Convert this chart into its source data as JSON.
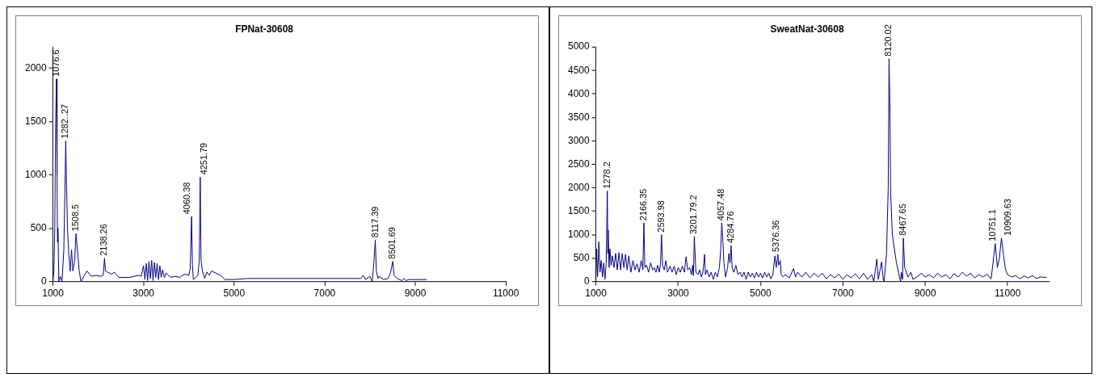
{
  "chart_data": [
    {
      "type": "line",
      "title": "FPNat-30608",
      "xlim": [
        1000,
        11000
      ],
      "xticks": [
        1000,
        3000,
        5000,
        7000,
        9000,
        11000
      ],
      "ylim": [
        0,
        2200
      ],
      "yticks": [
        0,
        500,
        1000,
        1500,
        2000
      ],
      "grid": false,
      "legend": false,
      "marker": "none",
      "series": [
        {
          "color": "#000080",
          "x": [
            1000,
            1020,
            1040,
            1060,
            1076.6,
            1090,
            1100,
            1110,
            1130,
            1160,
            1200,
            1240,
            1270,
            1282.27,
            1300,
            1320,
            1350,
            1380,
            1410,
            1440,
            1480,
            1508.5,
            1540,
            1580,
            1620,
            1680,
            1750,
            1850,
            1950,
            2050,
            2110,
            2138.26,
            2160,
            2200,
            2300,
            2350,
            2450,
            2700,
            2900,
            2950,
            3000,
            3030,
            3060,
            3090,
            3120,
            3150,
            3180,
            3210,
            3240,
            3270,
            3300,
            3330,
            3360,
            3390,
            3420,
            3460,
            3500,
            3600,
            3700,
            3800,
            3900,
            4000,
            4030,
            4060.38,
            4080,
            4100,
            4200,
            4230,
            4251.79,
            4270,
            4300,
            4350,
            4400,
            4450,
            4500,
            4600,
            4700,
            4800,
            5000,
            5300,
            5800,
            7800,
            7850,
            7900,
            8000,
            8050,
            8090,
            8117.39,
            8140,
            8180,
            8200,
            8300,
            8400,
            8450,
            8501.69,
            8530,
            8600,
            8700,
            8750,
            8800,
            8850,
            9250
          ],
          "values": [
            0,
            100,
            500,
            1500,
            1900,
            1000,
            370,
            500,
            0,
            50,
            0,
            300,
            1000,
            1320,
            900,
            500,
            250,
            100,
            300,
            100,
            200,
            450,
            300,
            100,
            0,
            50,
            100,
            50,
            60,
            50,
            60,
            220,
            100,
            90,
            70,
            90,
            40,
            40,
            60,
            50,
            150,
            20,
            170,
            10,
            190,
            30,
            200,
            10,
            180,
            40,
            170,
            20,
            150,
            40,
            110,
            40,
            80,
            40,
            50,
            40,
            70,
            60,
            120,
            610,
            150,
            20,
            60,
            200,
            980,
            200,
            100,
            30,
            90,
            60,
            100,
            80,
            60,
            20,
            20,
            30,
            30,
            30,
            60,
            20,
            50,
            0,
            200,
            390,
            100,
            30,
            50,
            20,
            30,
            80,
            190,
            60,
            30,
            10,
            30,
            10,
            20,
            20
          ]
        }
      ],
      "annotations": [
        {
          "text": "1076.6",
          "x": 1076.6,
          "y": 1900
        },
        {
          "text": "1282..27",
          "x": 1282.27,
          "y": 1320
        },
        {
          "text": "1508.5",
          "x": 1508.5,
          "y": 450
        },
        {
          "text": "2138.26",
          "x": 2138.26,
          "y": 220
        },
        {
          "text": "4060.38",
          "x": 4060.38,
          "y": 610
        },
        {
          "text": "4251.79",
          "x": 4251.79,
          "y": 980
        },
        {
          "text": "8117.39",
          "x": 8117.39,
          "y": 390
        },
        {
          "text": "8501.69",
          "x": 8501.69,
          "y": 190
        }
      ]
    },
    {
      "type": "line",
      "title": "SweatNat-30608",
      "xlim": [
        1000,
        12000
      ],
      "xticks": [
        1000,
        3000,
        5000,
        7000,
        9000,
        11000
      ],
      "ylim": [
        0,
        5000
      ],
      "yticks": [
        0,
        500,
        1000,
        1500,
        2000,
        2500,
        3000,
        3500,
        4000,
        4500,
        5000
      ],
      "grid": false,
      "legend": false,
      "marker": "none",
      "series": [
        {
          "color": "#000080",
          "x": [
            1000,
            1020,
            1040,
            1060,
            1070,
            1100,
            1130,
            1160,
            1190,
            1220,
            1250,
            1278.2,
            1290,
            1300,
            1320,
            1340,
            1370,
            1400,
            1440,
            1480,
            1520,
            1560,
            1600,
            1640,
            1680,
            1720,
            1760,
            1800,
            1850,
            1900,
            1950,
            2000,
            2050,
            2100,
            2140,
            2166.35,
            2190,
            2230,
            2280,
            2330,
            2380,
            2420,
            2460,
            2500,
            2540,
            2570,
            2593.98,
            2620,
            2660,
            2700,
            2740,
            2800,
            2850,
            2900,
            2950,
            3000,
            3050,
            3100,
            3150,
            3190,
            3230,
            3280,
            3320,
            3350,
            3370,
            3390,
            3430,
            3480,
            3520,
            3560,
            3600,
            3640,
            3660,
            3700,
            3750,
            3800,
            3850,
            3900,
            3950,
            4000,
            4030,
            4057.48,
            4080,
            4110,
            4150,
            4200,
            4230,
            4260,
            4284.76,
            4310,
            4350,
            4400,
            4450,
            4500,
            4550,
            4600,
            4650,
            4700,
            4750,
            4800,
            4850,
            4900,
            4950,
            5000,
            5050,
            5100,
            5150,
            5200,
            5250,
            5300,
            5348,
            5380,
            5420,
            5440,
            5480,
            5500,
            5550,
            5600,
            5700,
            5800,
            5850,
            5900,
            6000,
            6100,
            6200,
            6300,
            6400,
            6500,
            6600,
            6700,
            6800,
            6900,
            7000,
            7100,
            7200,
            7300,
            7400,
            7500,
            7600,
            7700,
            7750,
            7822,
            7860,
            7938,
            7980,
            8000,
            8060,
            8100,
            8120.02,
            8140,
            8160,
            8200,
            8300,
            8400,
            8420,
            8450,
            8467.65,
            8500,
            8580,
            8650,
            8700,
            8800,
            8900,
            9000,
            9100,
            9200,
            9300,
            9400,
            9500,
            9600,
            9700,
            9800,
            9900,
            10000,
            10100,
            10200,
            10300,
            10400,
            10500,
            10600,
            10700,
            10751.1,
            10800,
            10850,
            10909.63,
            10950,
            11000,
            11100,
            11200,
            11300,
            11400,
            11500,
            11600,
            11700,
            11800,
            11950
          ],
          "values": [
            0,
            700,
            100,
            500,
            850,
            200,
            450,
            100,
            400,
            50,
            380,
            1930,
            600,
            1100,
            300,
            700,
            350,
            550,
            300,
            600,
            250,
            620,
            250,
            600,
            300,
            580,
            250,
            550,
            200,
            450,
            250,
            380,
            200,
            450,
            250,
            1250,
            300,
            350,
            200,
            400,
            250,
            300,
            200,
            350,
            200,
            400,
            1000,
            350,
            250,
            450,
            200,
            330,
            200,
            330,
            150,
            300,
            200,
            330,
            200,
            530,
            250,
            300,
            150,
            350,
            130,
            960,
            200,
            150,
            250,
            100,
            200,
            580,
            150,
            250,
            100,
            200,
            50,
            200,
            100,
            300,
            650,
            1250,
            950,
            400,
            100,
            300,
            600,
            400,
            770,
            300,
            200,
            350,
            150,
            200,
            100,
            200,
            50,
            200,
            100,
            180,
            80,
            200,
            100,
            180,
            80,
            200,
            100,
            180,
            60,
            150,
            550,
            300,
            580,
            350,
            450,
            150,
            100,
            150,
            80,
            280,
            100,
            200,
            100,
            200,
            80,
            180,
            100,
            180,
            60,
            150,
            80,
            160,
            50,
            150,
            80,
            170,
            60,
            180,
            50,
            150,
            0,
            480,
            50,
            420,
            50,
            0,
            600,
            2000,
            4750,
            3800,
            1900,
            1000,
            400,
            0,
            200,
            50,
            930,
            300,
            100,
            200,
            50,
            100,
            180,
            100,
            150,
            80,
            180,
            100,
            150,
            60,
            170,
            100,
            200,
            120,
            180,
            80,
            150,
            100,
            160,
            60,
            810,
            300,
            500,
            930,
            500,
            250,
            150,
            100,
            130,
            60,
            120,
            80,
            130,
            70,
            100,
            90
          ]
        }
      ],
      "annotations": [
        {
          "text": "1278.2",
          "x": 1278.2,
          "y": 1930
        },
        {
          "text": "2166.35",
          "x": 2166.35,
          "y": 1250
        },
        {
          "text": "2593.98",
          "x": 2593.98,
          "y": 1000
        },
        {
          "text": "3201.79.2",
          "x": 3390,
          "y": 960
        },
        {
          "text": "4057.48",
          "x": 4057.48,
          "y": 1250
        },
        {
          "text": "4284.76",
          "x": 4284.76,
          "y": 770
        },
        {
          "text": "5376.36",
          "x": 5380,
          "y": 580
        },
        {
          "text": "8120.02",
          "x": 8120.02,
          "y": 4750
        },
        {
          "text": "8467.65",
          "x": 8467.65,
          "y": 930
        },
        {
          "text": "10751.1",
          "x": 10751.1,
          "y": 810
        },
        {
          "text": "10909.63",
          "x": 10909.63,
          "y": 930
        }
      ]
    }
  ]
}
